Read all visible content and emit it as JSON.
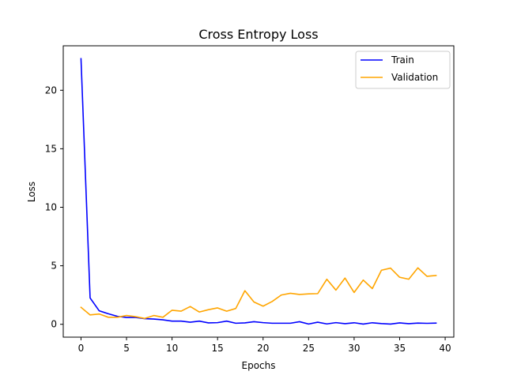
{
  "chart_data": {
    "type": "line",
    "title": "Cross Entropy Loss",
    "xlabel": "Epochs",
    "ylabel": "Loss",
    "xlim": [
      -1.95,
      40.95
    ],
    "ylim": [
      -1.1,
      23.8
    ],
    "xticks": [
      0,
      5,
      10,
      15,
      20,
      25,
      30,
      35,
      40
    ],
    "yticks": [
      0,
      5,
      10,
      15,
      20
    ],
    "grid": false,
    "legend_position": "top-right",
    "x": [
      0,
      1,
      2,
      3,
      4,
      5,
      6,
      7,
      8,
      9,
      10,
      11,
      12,
      13,
      14,
      15,
      16,
      17,
      18,
      19,
      20,
      21,
      22,
      23,
      24,
      25,
      26,
      27,
      28,
      29,
      30,
      31,
      32,
      33,
      34,
      35,
      36,
      37,
      38,
      39
    ],
    "series": [
      {
        "name": "Train",
        "color": "#0000ff",
        "values": [
          22.7,
          2.25,
          1.15,
          0.9,
          0.68,
          0.58,
          0.58,
          0.48,
          0.45,
          0.38,
          0.27,
          0.27,
          0.18,
          0.27,
          0.12,
          0.14,
          0.27,
          0.09,
          0.12,
          0.22,
          0.14,
          0.09,
          0.09,
          0.09,
          0.22,
          0.02,
          0.18,
          0.03,
          0.14,
          0.05,
          0.13,
          0.02,
          0.13,
          0.06,
          0.02,
          0.12,
          0.05,
          0.1,
          0.08,
          0.1
        ]
      },
      {
        "name": "Validation",
        "color": "#ffa500",
        "values": [
          1.45,
          0.8,
          0.88,
          0.6,
          0.6,
          0.75,
          0.65,
          0.5,
          0.75,
          0.6,
          1.2,
          1.12,
          1.52,
          1.05,
          1.25,
          1.4,
          1.12,
          1.35,
          2.87,
          1.9,
          1.55,
          1.95,
          2.5,
          2.65,
          2.55,
          2.6,
          2.62,
          3.85,
          2.92,
          3.95,
          2.72,
          3.78,
          3.05,
          4.62,
          4.8,
          4.02,
          3.85,
          4.82,
          4.1,
          4.17
        ]
      }
    ]
  }
}
